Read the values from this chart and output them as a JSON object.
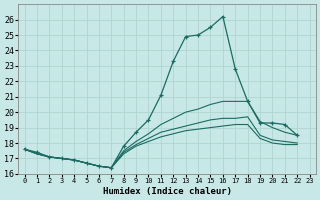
{
  "xlabel": "Humidex (Indice chaleur)",
  "bg_color": "#c8e8e8",
  "grid_color": "#b0d4d0",
  "line_color": "#1a6b60",
  "xlim": [
    -0.5,
    23.5
  ],
  "ylim": [
    16,
    27
  ],
  "yticks": [
    16,
    17,
    18,
    19,
    20,
    21,
    22,
    23,
    24,
    25,
    26
  ],
  "xticks": [
    0,
    1,
    2,
    3,
    4,
    5,
    6,
    7,
    8,
    9,
    10,
    11,
    12,
    13,
    14,
    15,
    16,
    17,
    18,
    19,
    20,
    21,
    22,
    23
  ],
  "line_main": [
    17.6,
    17.4,
    17.1,
    17.0,
    16.9,
    16.7,
    16.5,
    16.4,
    17.8,
    18.7,
    19.5,
    21.1,
    23.3,
    24.9,
    25.0,
    25.5,
    26.2,
    22.8,
    20.7,
    19.3,
    19.3,
    19.2,
    18.5
  ],
  "line2": [
    17.6,
    17.3,
    17.1,
    17.0,
    16.9,
    16.7,
    16.5,
    16.4,
    17.5,
    18.1,
    18.6,
    19.2,
    19.6,
    20.0,
    20.2,
    20.5,
    20.7,
    20.7,
    20.7,
    19.4,
    19.0,
    18.7,
    18.5
  ],
  "line3": [
    17.6,
    17.3,
    17.1,
    17.0,
    16.9,
    16.7,
    16.5,
    16.4,
    17.4,
    17.9,
    18.3,
    18.7,
    18.9,
    19.1,
    19.3,
    19.5,
    19.6,
    19.6,
    19.7,
    18.5,
    18.2,
    18.1,
    18.0
  ],
  "line4": [
    17.6,
    17.3,
    17.1,
    17.0,
    16.9,
    16.7,
    16.5,
    16.4,
    17.3,
    17.8,
    18.1,
    18.4,
    18.6,
    18.8,
    18.9,
    19.0,
    19.1,
    19.2,
    19.2,
    18.3,
    18.0,
    17.9,
    17.9
  ]
}
